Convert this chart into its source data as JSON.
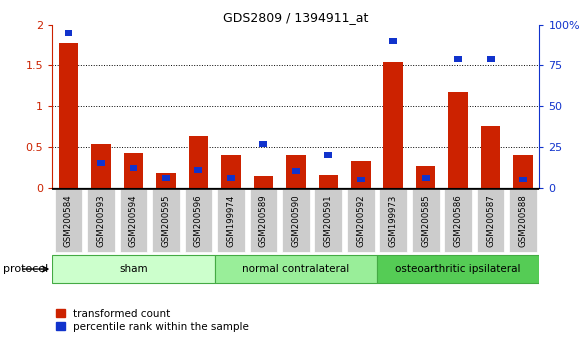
{
  "title": "GDS2809 / 1394911_at",
  "categories": [
    "GSM200584",
    "GSM200593",
    "GSM200594",
    "GSM200595",
    "GSM200596",
    "GSM199974",
    "GSM200589",
    "GSM200590",
    "GSM200591",
    "GSM200592",
    "GSM199973",
    "GSM200585",
    "GSM200586",
    "GSM200587",
    "GSM200588"
  ],
  "red_values": [
    1.78,
    0.54,
    0.43,
    0.18,
    0.63,
    0.4,
    0.14,
    0.4,
    0.16,
    0.33,
    1.54,
    0.27,
    1.18,
    0.76,
    0.4
  ],
  "blue_pct": [
    95,
    15,
    12,
    6,
    11,
    6,
    27,
    10,
    20,
    5,
    90,
    6,
    79,
    79,
    5
  ],
  "groups": [
    {
      "label": "sham",
      "start": 0,
      "end": 5,
      "color": "#ccffcc"
    },
    {
      "label": "normal contralateral",
      "start": 5,
      "end": 10,
      "color": "#99ee99"
    },
    {
      "label": "osteoarthritic ipsilateral",
      "start": 10,
      "end": 15,
      "color": "#55cc55"
    }
  ],
  "ylim_left": [
    0,
    2.0
  ],
  "ylim_right": [
    0,
    100
  ],
  "yticks_left": [
    0,
    0.5,
    1.0,
    1.5,
    2.0
  ],
  "ytick_labels_left": [
    "0",
    "0.5",
    "1",
    "1.5",
    "2"
  ],
  "yticks_right": [
    0,
    25,
    50,
    75,
    100
  ],
  "ytick_labels_right": [
    "0",
    "25",
    "50",
    "75",
    "100%"
  ],
  "bar_color_red": "#cc2200",
  "bar_color_blue": "#1133cc",
  "bg_color": "#ffffff",
  "tick_label_bg": "#cccccc",
  "protocol_label": "protocol",
  "legend_red": "transformed count",
  "legend_blue": "percentile rank within the sample"
}
